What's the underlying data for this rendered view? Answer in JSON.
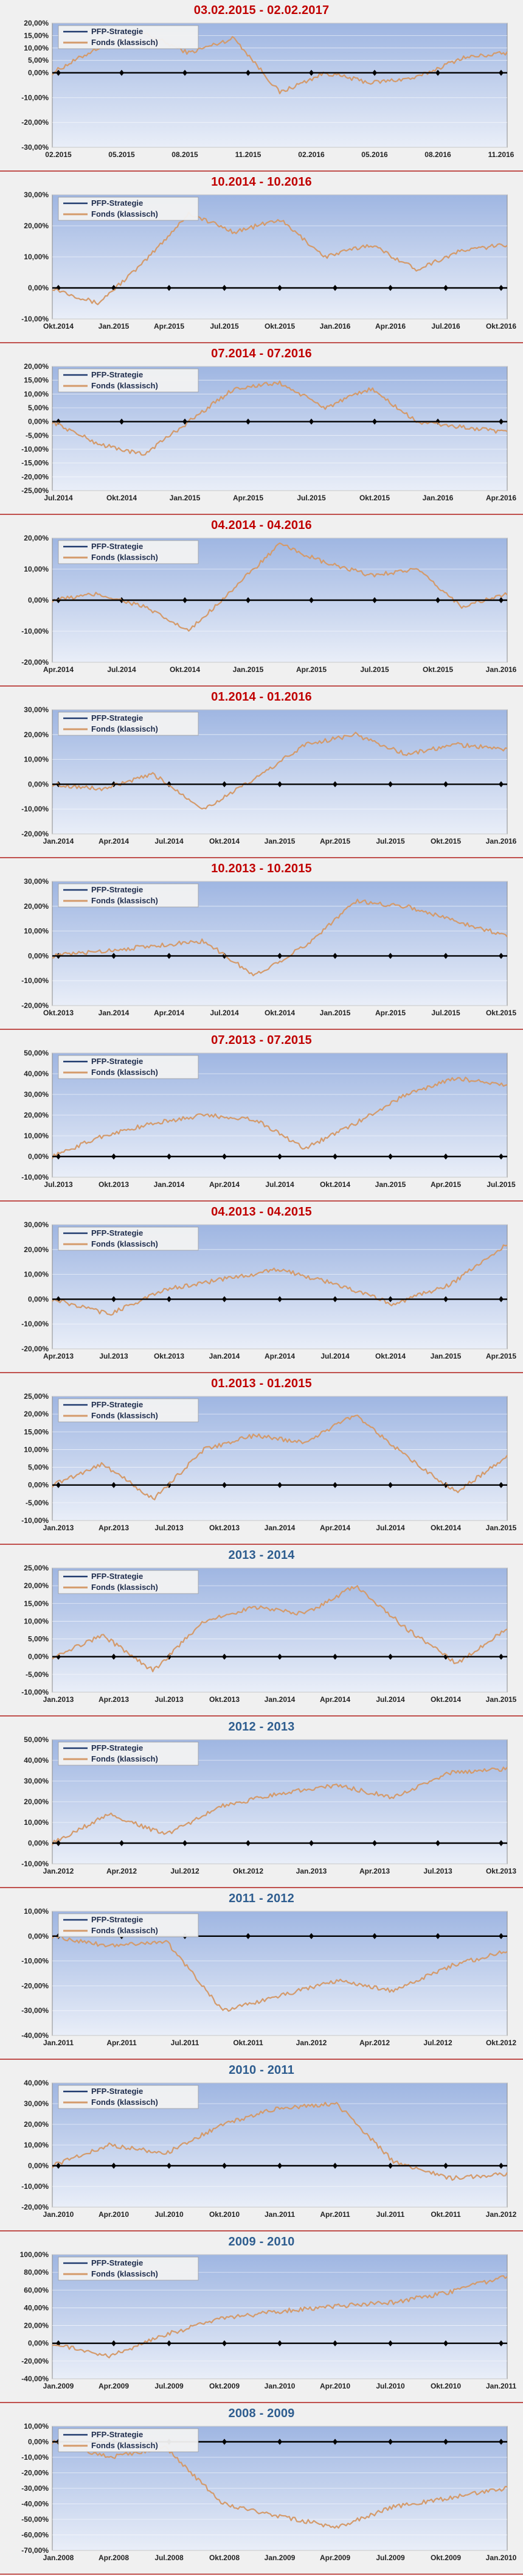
{
  "legend": {
    "strategy": "PFP-Strategie",
    "fund": "Fonds (klassisch)"
  },
  "colors": {
    "strategy": "#1f3a6e",
    "fund": "#d49a6a",
    "title_red": "#c00000",
    "title_blue": "#2e5d8f",
    "plot_top": "#9fb6e2",
    "plot_bottom": "#e9eef8",
    "zero": "#000000"
  },
  "chart_data": [
    {
      "type": "line",
      "title": "03.02.2015 - 02.02.2017",
      "title_color": "red",
      "ylim": [
        -30,
        20
      ],
      "yticks": [
        "-30,00%",
        "-20,00%",
        "-10,00%",
        "0,00%",
        "5,00%",
        "10,00%",
        "15,00%",
        "20,00%"
      ],
      "ytick_values": [
        -30,
        -20,
        -10,
        0,
        5,
        10,
        15,
        20
      ],
      "xticks": [
        "02.2015",
        "05.2015",
        "08.2015",
        "11.2015",
        "02.2016",
        "05.2016",
        "08.2016",
        "11.2016"
      ],
      "series": [
        {
          "name": "PFP-Strategie",
          "values": [
            0,
            0,
            0,
            0,
            0,
            0,
            0,
            0,
            0
          ]
        },
        {
          "name": "Fonds (klassisch)",
          "values": [
            0,
            10,
            16,
            8,
            14,
            -8,
            0,
            -4,
            -2,
            6,
            8
          ]
        }
      ]
    },
    {
      "type": "line",
      "title": "10.2014 - 10.2016",
      "title_color": "red",
      "ylim": [
        -10,
        30
      ],
      "yticks": [
        "-10,00%",
        "0,00%",
        "10,00%",
        "20,00%",
        "30,00%"
      ],
      "ytick_values": [
        -10,
        0,
        10,
        20,
        30
      ],
      "xticks": [
        "Okt.2014",
        "Jan.2015",
        "Apr.2015",
        "Jul.2015",
        "Okt.2015",
        "Jan.2016",
        "Apr.2016",
        "Jul.2016",
        "Okt.2016"
      ],
      "series": [
        {
          "name": "PFP-Strategie",
          "values": [
            0,
            0,
            0,
            0,
            0,
            0,
            0,
            0,
            0
          ]
        },
        {
          "name": "Fonds (klassisch)",
          "values": [
            0,
            -5,
            8,
            24,
            18,
            22,
            10,
            14,
            6,
            12,
            14
          ]
        }
      ]
    },
    {
      "type": "line",
      "title": "07.2014 - 07.2016",
      "title_color": "red",
      "ylim": [
        -25,
        20
      ],
      "yticks": [
        "-25,00%",
        "-20,00%",
        "-15,00%",
        "-10,00%",
        "-5,00%",
        "0,00%",
        "5,00%",
        "10,00%",
        "15,00%",
        "20,00%"
      ],
      "ytick_values": [
        -25,
        -20,
        -15,
        -10,
        -5,
        0,
        5,
        10,
        15,
        20
      ],
      "xticks": [
        "Jul.2014",
        "Okt.2014",
        "Jan.2015",
        "Apr.2015",
        "Jul.2015",
        "Okt.2015",
        "Jan.2016",
        "Apr.2016"
      ],
      "series": [
        {
          "name": "PFP-Strategie",
          "values": [
            0,
            0,
            0,
            0,
            0,
            0,
            0,
            0,
            0
          ]
        },
        {
          "name": "Fonds (klassisch)",
          "values": [
            0,
            -8,
            -12,
            0,
            12,
            14,
            5,
            12,
            0,
            -2,
            -4
          ]
        }
      ]
    },
    {
      "type": "line",
      "title": "04.2014 - 04.2016",
      "title_color": "red",
      "ylim": [
        -20,
        20
      ],
      "yticks": [
        "-20,00%",
        "-10,00%",
        "0,00%",
        "10,00%",
        "20,00%"
      ],
      "ytick_values": [
        -20,
        -10,
        0,
        10,
        20
      ],
      "xticks": [
        "Apr.2014",
        "Jul.2014",
        "Okt.2014",
        "Jan.2015",
        "Apr.2015",
        "Jul.2015",
        "Okt.2015",
        "Jan.2016"
      ],
      "series": [
        {
          "name": "PFP-Strategie",
          "values": [
            0,
            0,
            0,
            0,
            0,
            0,
            0,
            0,
            0
          ]
        },
        {
          "name": "Fonds (klassisch)",
          "values": [
            0,
            2,
            -2,
            -10,
            4,
            18,
            12,
            8,
            10,
            -2,
            2
          ]
        }
      ]
    },
    {
      "type": "line",
      "title": "01.2014 - 01.2016",
      "title_color": "red",
      "ylim": [
        -20,
        30
      ],
      "yticks": [
        "-20,00%",
        "-10,00%",
        "0,00%",
        "10,00%",
        "20,00%",
        "30,00%"
      ],
      "ytick_values": [
        -20,
        -10,
        0,
        10,
        20,
        30
      ],
      "xticks": [
        "Jan.2014",
        "Apr.2014",
        "Jul.2014",
        "Okt.2014",
        "Jan.2015",
        "Apr.2015",
        "Jul.2015",
        "Okt.2015",
        "Jan.2016"
      ],
      "series": [
        {
          "name": "PFP-Strategie",
          "values": [
            0,
            0,
            0,
            0,
            0,
            0,
            0,
            0,
            0
          ]
        },
        {
          "name": "Fonds (klassisch)",
          "values": [
            0,
            -2,
            4,
            -10,
            2,
            16,
            20,
            12,
            16,
            14
          ]
        }
      ]
    },
    {
      "type": "line",
      "title": "10.2013 - 10.2015",
      "title_color": "red",
      "ylim": [
        -20,
        30
      ],
      "yticks": [
        "-20,00%",
        "-10,00%",
        "0,00%",
        "10,00%",
        "20,00%",
        "30,00%"
      ],
      "ytick_values": [
        -20,
        -10,
        0,
        10,
        20,
        30
      ],
      "xticks": [
        "Okt.2013",
        "Jan.2014",
        "Apr.2014",
        "Jul.2014",
        "Okt.2014",
        "Jan.2015",
        "Apr.2015",
        "Jul.2015",
        "Okt.2015"
      ],
      "series": [
        {
          "name": "PFP-Strategie",
          "values": [
            0,
            0,
            0,
            0,
            0,
            0,
            0,
            0,
            0
          ]
        },
        {
          "name": "Fonds (klassisch)",
          "values": [
            0,
            2,
            4,
            6,
            -8,
            4,
            22,
            20,
            14,
            8
          ]
        }
      ]
    },
    {
      "type": "line",
      "title": "07.2013 - 07.2015",
      "title_color": "red",
      "ylim": [
        -10,
        50
      ],
      "yticks": [
        "-10,00%",
        "0,00%",
        "10,00%",
        "20,00%",
        "30,00%",
        "40,00%",
        "50,00%"
      ],
      "ytick_values": [
        -10,
        0,
        10,
        20,
        30,
        40,
        50
      ],
      "xticks": [
        "Jul.2013",
        "Okt.2013",
        "Jan.2014",
        "Apr.2014",
        "Jul.2014",
        "Okt.2014",
        "Jan.2015",
        "Apr.2015",
        "Jul.2015"
      ],
      "series": [
        {
          "name": "PFP-Strategie",
          "values": [
            0,
            0,
            0,
            0,
            0,
            0,
            0,
            0,
            0
          ]
        },
        {
          "name": "Fonds (klassisch)",
          "values": [
            0,
            10,
            16,
            20,
            18,
            4,
            16,
            30,
            38,
            34
          ]
        }
      ]
    },
    {
      "type": "line",
      "title": "04.2013 - 04.2015",
      "title_color": "red",
      "ylim": [
        -20,
        30
      ],
      "yticks": [
        "-20,00%",
        "-10,00%",
        "0,00%",
        "10,00%",
        "20,00%",
        "30,00%"
      ],
      "ytick_values": [
        -20,
        -10,
        0,
        10,
        20,
        30
      ],
      "xticks": [
        "Apr.2013",
        "Jul.2013",
        "Okt.2013",
        "Jan.2014",
        "Apr.2014",
        "Jul.2014",
        "Okt.2014",
        "Jan.2015",
        "Apr.2015"
      ],
      "series": [
        {
          "name": "PFP-Strategie",
          "values": [
            0,
            0,
            0,
            0,
            0,
            0,
            0,
            0,
            0
          ]
        },
        {
          "name": "Fonds (klassisch)",
          "values": [
            0,
            -6,
            4,
            8,
            12,
            6,
            -2,
            6,
            22
          ]
        }
      ]
    },
    {
      "type": "line",
      "title": "01.2013 - 01.2015",
      "title_color": "red",
      "ylim": [
        -10,
        25
      ],
      "yticks": [
        "-10,00%",
        "-5,00%",
        "0,00%",
        "5,00%",
        "10,00%",
        "15,00%",
        "20,00%",
        "25,00%"
      ],
      "ytick_values": [
        -10,
        -5,
        0,
        5,
        10,
        15,
        20,
        25
      ],
      "xticks": [
        "Jan.2013",
        "Apr.2013",
        "Jul.2013",
        "Okt.2013",
        "Jan.2014",
        "Apr.2014",
        "Jul.2014",
        "Okt.2014",
        "Jan.2015"
      ],
      "series": [
        {
          "name": "PFP-Strategie",
          "values": [
            0,
            0,
            0,
            0,
            0,
            0,
            0,
            0,
            0
          ]
        },
        {
          "name": "Fonds (klassisch)",
          "values": [
            0,
            6,
            -4,
            10,
            14,
            12,
            20,
            8,
            -2,
            8
          ]
        }
      ]
    },
    {
      "type": "line",
      "title": "2013 - 2014",
      "title_color": "blue",
      "ylim": [
        -10,
        25
      ],
      "yticks": [
        "-10,00%",
        "-5,00%",
        "0,00%",
        "5,00%",
        "10,00%",
        "15,00%",
        "20,00%",
        "25,00%"
      ],
      "ytick_values": [
        -10,
        -5,
        0,
        5,
        10,
        15,
        20,
        25
      ],
      "xticks": [
        "Jan.2013",
        "Apr.2013",
        "Jul.2013",
        "Okt.2013",
        "Jan.2014",
        "Apr.2014",
        "Jul.2014",
        "Okt.2014",
        "Jan.2015"
      ],
      "series": [
        {
          "name": "PFP-Strategie",
          "values": [
            0,
            0,
            0,
            0,
            0,
            0,
            0,
            0,
            0
          ]
        },
        {
          "name": "Fonds (klassisch)",
          "values": [
            0,
            6,
            -4,
            10,
            14,
            12,
            20,
            8,
            -2,
            8
          ]
        }
      ]
    },
    {
      "type": "line",
      "title": "2012 - 2013",
      "title_color": "blue",
      "ylim": [
        -10,
        50
      ],
      "yticks": [
        "-10,00%",
        "0,00%",
        "10,00%",
        "20,00%",
        "30,00%",
        "40,00%",
        "50,00%"
      ],
      "ytick_values": [
        -10,
        0,
        10,
        20,
        30,
        40,
        50
      ],
      "xticks": [
        "Jan.2012",
        "Apr.2012",
        "Jul.2012",
        "Okt.2012",
        "Jan.2013",
        "Apr.2013",
        "Jul.2013",
        "Okt.2013"
      ],
      "series": [
        {
          "name": "PFP-Strategie",
          "values": [
            0,
            0,
            0,
            0,
            0,
            0,
            0,
            0,
            0
          ]
        },
        {
          "name": "Fonds (klassisch)",
          "values": [
            0,
            14,
            4,
            18,
            24,
            28,
            22,
            34,
            36
          ]
        }
      ]
    },
    {
      "type": "line",
      "title": "2011 - 2012",
      "title_color": "blue",
      "ylim": [
        -40,
        10
      ],
      "yticks": [
        "-40,00%",
        "-30,00%",
        "-20,00%",
        "-10,00%",
        "0,00%",
        "10,00%"
      ],
      "ytick_values": [
        -40,
        -30,
        -20,
        -10,
        0,
        10
      ],
      "xticks": [
        "Jan.2011",
        "Apr.2011",
        "Jul.2011",
        "Okt.2011",
        "Jan.2012",
        "Apr.2012",
        "Jul.2012",
        "Okt.2012"
      ],
      "series": [
        {
          "name": "PFP-Strategie",
          "values": [
            0,
            0,
            0,
            0,
            0,
            0,
            0,
            0,
            0
          ]
        },
        {
          "name": "Fonds (klassisch)",
          "values": [
            0,
            -4,
            -2,
            -30,
            -24,
            -18,
            -22,
            -12,
            -6
          ]
        }
      ]
    },
    {
      "type": "line",
      "title": "2010 - 2011",
      "title_color": "blue",
      "ylim": [
        -20,
        40
      ],
      "yticks": [
        "-20,00%",
        "-10,00%",
        "0,00%",
        "10,00%",
        "20,00%",
        "30,00%",
        "40,00%"
      ],
      "ytick_values": [
        -20,
        -10,
        0,
        10,
        20,
        30,
        40
      ],
      "xticks": [
        "Jan.2010",
        "Apr.2010",
        "Jul.2010",
        "Okt.2010",
        "Jan.2011",
        "Apr.2011",
        "Jul.2011",
        "Okt.2011",
        "Jan.2012"
      ],
      "series": [
        {
          "name": "PFP-Strategie",
          "values": [
            0,
            0,
            0,
            0,
            0,
            0,
            0,
            0,
            0
          ]
        },
        {
          "name": "Fonds (klassisch)",
          "values": [
            0,
            10,
            6,
            20,
            28,
            30,
            2,
            -6,
            -4
          ]
        }
      ]
    },
    {
      "type": "line",
      "title": "2009 - 2010",
      "title_color": "blue",
      "ylim": [
        -40,
        100
      ],
      "yticks": [
        "-40,00%",
        "-20,00%",
        "0,00%",
        "20,00%",
        "40,00%",
        "60,00%",
        "80,00%",
        "100,00%"
      ],
      "ytick_values": [
        -40,
        -20,
        0,
        20,
        40,
        60,
        80,
        100
      ],
      "xticks": [
        "Jan.2009",
        "Apr.2009",
        "Jul.2009",
        "Okt.2009",
        "Jan.2010",
        "Apr.2010",
        "Jul.2010",
        "Okt.2010",
        "Jan.2011"
      ],
      "series": [
        {
          "name": "PFP-Strategie",
          "values": [
            0,
            0,
            0,
            0,
            0,
            0,
            0,
            0,
            0
          ]
        },
        {
          "name": "Fonds (klassisch)",
          "values": [
            0,
            -15,
            10,
            28,
            36,
            42,
            46,
            58,
            76
          ]
        }
      ]
    },
    {
      "type": "line",
      "title": "2008 - 2009",
      "title_color": "blue",
      "ylim": [
        -70,
        10
      ],
      "yticks": [
        "-70,00%",
        "-60,00%",
        "-50,00%",
        "-40,00%",
        "-30,00%",
        "-20,00%",
        "-10,00%",
        "0,00%",
        "10,00%"
      ],
      "ytick_values": [
        -70,
        -60,
        -50,
        -40,
        -30,
        -20,
        -10,
        0,
        10
      ],
      "xticks": [
        "Jan.2008",
        "Apr.2008",
        "Jul.2008",
        "Okt.2008",
        "Jan.2009",
        "Apr.2009",
        "Jul.2009",
        "Okt.2009",
        "Jan.2010"
      ],
      "series": [
        {
          "name": "PFP-Strategie",
          "values": [
            0,
            0,
            0,
            0,
            0,
            0,
            0,
            0,
            0
          ]
        },
        {
          "name": "Fonds (klassisch)",
          "values": [
            0,
            -10,
            -4,
            -40,
            -48,
            -55,
            -42,
            -36,
            -30
          ]
        }
      ]
    }
  ]
}
